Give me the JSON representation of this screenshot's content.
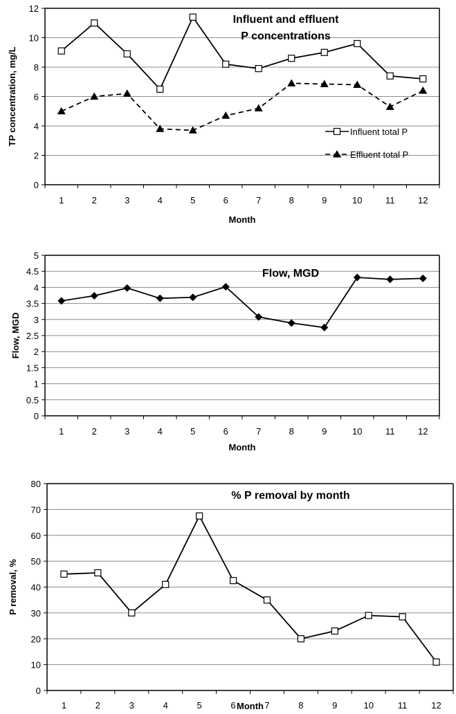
{
  "chart_data": [
    {
      "type": "line",
      "title": "Influent and effluent P concentrations",
      "title_lines": [
        "Influent and effluent",
        "P concentrations"
      ],
      "xlabel": "Month",
      "ylabel": "TP concentration, mg/L",
      "categories": [
        "1",
        "2",
        "3",
        "4",
        "5",
        "6",
        "7",
        "8",
        "9",
        "10",
        "11",
        "12"
      ],
      "ylim": [
        0,
        12
      ],
      "yticks": [
        "0",
        "2",
        "4",
        "6",
        "8",
        "10",
        "12"
      ],
      "grid": true,
      "legend_position": "lower-right",
      "series": [
        {
          "name": "Influent total P",
          "marker": "open-square",
          "line": "solid",
          "values": [
            9.1,
            11.0,
            8.9,
            6.5,
            11.4,
            8.2,
            7.9,
            8.6,
            9.0,
            9.6,
            7.4,
            7.2
          ]
        },
        {
          "name": "Effluent total P",
          "marker": "filled-triangle",
          "line": "dashed",
          "values": [
            5.0,
            6.0,
            6.2,
            3.8,
            3.7,
            4.7,
            5.2,
            6.9,
            6.85,
            6.8,
            5.3,
            6.4
          ]
        }
      ]
    },
    {
      "type": "line",
      "title": "Flow, MGD",
      "title_lines": [
        "Flow, MGD"
      ],
      "xlabel": "Month",
      "ylabel": "Flow, MGD",
      "categories": [
        "1",
        "2",
        "3",
        "4",
        "5",
        "6",
        "7",
        "8",
        "9",
        "10",
        "11",
        "12"
      ],
      "ylim": [
        0,
        5
      ],
      "yticks": [
        "0",
        "0.5",
        "1",
        "1.5",
        "2",
        "2.5",
        "3",
        "3.5",
        "4",
        "4.5",
        "5"
      ],
      "grid": true,
      "series": [
        {
          "name": "",
          "marker": "filled-diamond",
          "line": "solid",
          "values": [
            3.58,
            3.74,
            3.98,
            3.66,
            3.69,
            4.02,
            3.08,
            2.89,
            2.75,
            4.31,
            4.25,
            4.28
          ]
        }
      ]
    },
    {
      "type": "line",
      "title": "% P removal by month",
      "title_lines": [
        "% P removal by month"
      ],
      "xlabel": "Month",
      "ylabel": "P removal, %",
      "categories": [
        "1",
        "2",
        "3",
        "4",
        "5",
        "6",
        "7",
        "8",
        "9",
        "10",
        "11",
        "12"
      ],
      "ylim": [
        0,
        80
      ],
      "yticks": [
        "0",
        "10",
        "20",
        "30",
        "40",
        "50",
        "60",
        "70",
        "80"
      ],
      "grid": true,
      "series": [
        {
          "name": "",
          "marker": "open-square",
          "line": "solid",
          "values": [
            45,
            45.5,
            30,
            41,
            67.5,
            42.5,
            35,
            20,
            23,
            29,
            28.5,
            11
          ]
        }
      ]
    }
  ]
}
